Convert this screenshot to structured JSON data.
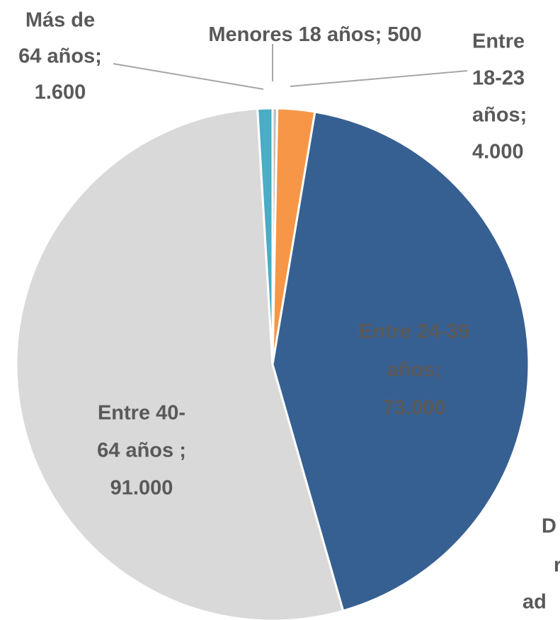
{
  "chart_data": {
    "type": "pie",
    "categories": [
      [
        "Menores 18 años;"
      ],
      [
        "Entre",
        "18-23",
        "años;"
      ],
      [
        "Entre 24-39",
        "años;"
      ],
      [
        "Entre 40-",
        "64 años ;"
      ],
      [
        "Más de",
        "64 años;"
      ]
    ],
    "values": [
      500,
      4000,
      73000,
      91000,
      1600
    ],
    "value_labels": [
      "500",
      "4.000",
      "73.000",
      "91.000",
      "1.600"
    ],
    "colors": [
      "#bfbfbf",
      "#f79646",
      "#376092",
      "#d9d9d9",
      "#4bacc6"
    ],
    "annotations": [
      "D",
      "r",
      "ad"
    ]
  }
}
